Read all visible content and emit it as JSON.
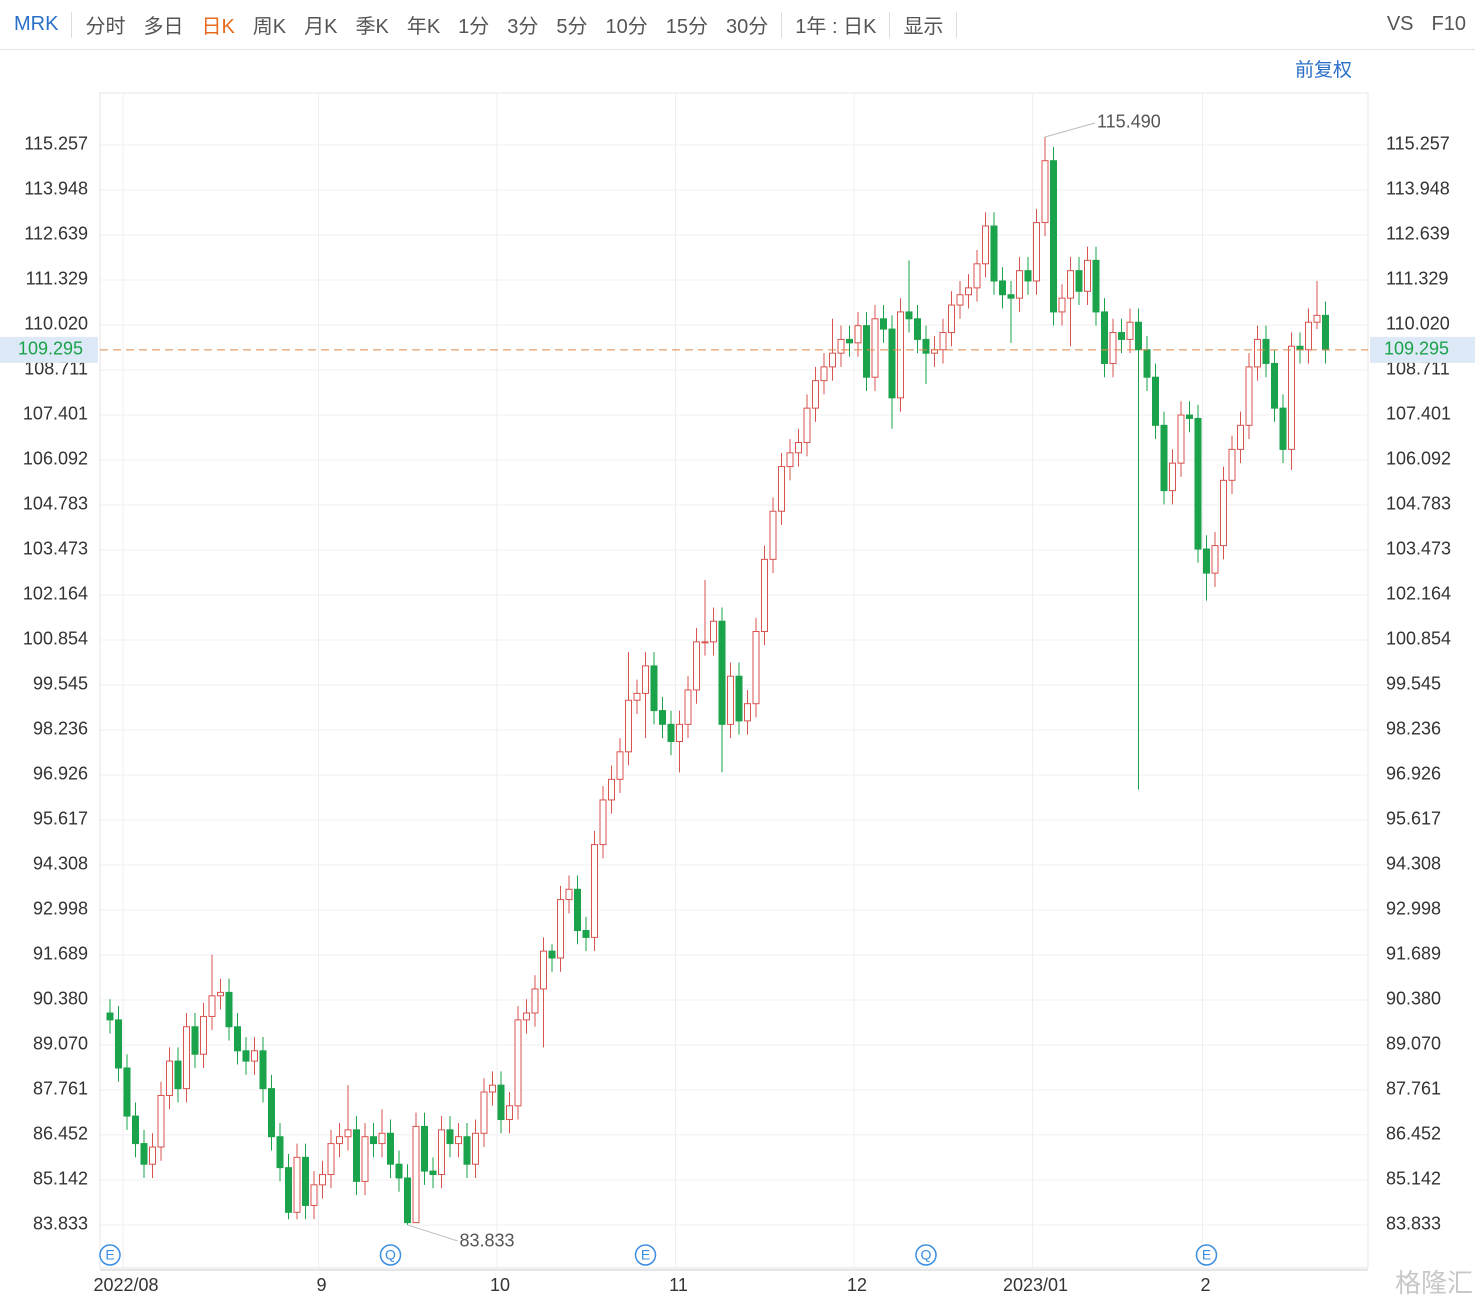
{
  "toolbar": {
    "symbol": "MRK",
    "periods": [
      "分时",
      "多日",
      "日K",
      "周K",
      "月K",
      "季K",
      "年K",
      "1分",
      "3分",
      "5分",
      "10分",
      "15分",
      "30分"
    ],
    "active": "日K",
    "range": "1年 : 日K",
    "display": "显示",
    "vs": "VS",
    "f10": "F10"
  },
  "adjust": "前复权",
  "watermark": "格隆汇",
  "chart_data": {
    "type": "candlestick",
    "up_color": "#d9534f",
    "down_color": "#1aa34a",
    "grid": true,
    "ylim": [
      82.58,
      116.77
    ],
    "yticks": [
      115.257,
      113.948,
      112.639,
      111.329,
      {
        "value": 110.02,
        "label": "110.020"
      },
      108.711,
      107.401,
      106.092,
      104.783,
      103.473,
      102.164,
      100.854,
      99.545,
      98.236,
      96.926,
      95.617,
      94.308,
      92.998,
      91.689,
      {
        "value": 90.38,
        "label": "90.380"
      },
      {
        "value": 89.07,
        "label": "89.070"
      },
      87.761,
      86.452,
      85.142,
      83.833
    ],
    "categories": [
      null,
      null,
      "2022/08",
      null,
      null,
      null,
      null,
      null,
      null,
      null,
      null,
      null,
      null,
      null,
      null,
      null,
      null,
      null,
      null,
      null,
      null,
      null,
      null,
      null,
      null,
      "9",
      null,
      null,
      null,
      null,
      null,
      null,
      null,
      null,
      null,
      null,
      null,
      null,
      null,
      null,
      null,
      null,
      null,
      null,
      null,
      null,
      "10",
      null,
      null,
      null,
      null,
      null,
      null,
      null,
      null,
      null,
      null,
      null,
      null,
      null,
      null,
      null,
      null,
      null,
      null,
      null,
      null,
      "11",
      null,
      null,
      null,
      null,
      null,
      null,
      null,
      null,
      null,
      null,
      null,
      null,
      null,
      null,
      null,
      null,
      null,
      null,
      null,
      null,
      "12",
      null,
      null,
      null,
      null,
      null,
      null,
      null,
      null,
      null,
      null,
      null,
      null,
      null,
      null,
      null,
      null,
      null,
      null,
      null,
      null,
      "2023/01",
      null,
      null,
      null,
      null,
      null,
      null,
      null,
      null,
      null,
      null,
      null,
      null,
      null,
      null,
      null,
      null,
      null,
      null,
      null,
      "2",
      null,
      null,
      null,
      null,
      null,
      null,
      null,
      null,
      null,
      null,
      null,
      null,
      null,
      null
    ],
    "open": [
      90.0,
      89.8,
      88.4,
      87.0,
      86.2,
      85.6,
      86.1,
      87.6,
      88.6,
      87.8,
      89.6,
      88.8,
      89.9,
      90.5,
      90.6,
      89.6,
      88.9,
      88.6,
      88.9,
      87.8,
      86.4,
      85.5,
      84.2,
      85.8,
      84.4,
      85.0,
      85.3,
      86.2,
      86.4,
      86.6,
      85.1,
      86.4,
      86.2,
      86.5,
      85.6,
      85.2,
      83.9,
      86.7,
      85.4,
      85.3,
      86.6,
      86.2,
      86.4,
      85.6,
      86.5,
      87.7,
      87.9,
      86.9,
      87.3,
      89.8,
      90.0,
      90.7,
      91.8,
      91.6,
      93.3,
      93.6,
      92.4,
      92.2,
      94.9,
      96.2,
      96.8,
      97.6,
      99.1,
      99.3,
      100.1,
      98.8,
      98.4,
      97.9,
      98.4,
      99.4,
      100.8,
      100.8,
      101.4,
      98.4,
      99.8,
      98.5,
      99.0,
      101.1,
      103.2,
      104.6,
      105.9,
      106.3,
      106.6,
      107.6,
      108.4,
      108.8,
      109.2,
      109.6,
      109.5,
      110.0,
      108.5,
      110.2,
      109.9,
      107.9,
      110.4,
      110.2,
      109.6,
      109.2,
      109.3,
      109.8,
      110.6,
      110.9,
      111.1,
      111.8,
      112.9,
      111.3,
      110.9,
      110.8,
      111.6,
      111.3,
      113.0,
      114.8,
      110.4,
      110.8,
      111.6,
      111.0,
      111.9,
      110.4,
      108.9,
      109.8,
      109.6,
      110.1,
      109.3,
      108.5,
      107.1,
      105.2,
      106.0,
      107.4,
      107.3,
      103.5,
      102.8,
      103.6,
      105.5,
      106.4,
      107.1,
      108.8,
      109.6,
      108.9,
      107.6,
      106.4,
      109.4,
      109.3,
      110.1,
      110.3
    ],
    "high": [
      90.4,
      90.2,
      88.8,
      87.4,
      86.6,
      86.5,
      88.0,
      89.0,
      89.0,
      90.0,
      90.0,
      90.3,
      91.7,
      91.0,
      91.0,
      90.0,
      89.3,
      89.3,
      89.3,
      88.2,
      86.8,
      85.9,
      86.2,
      86.2,
      85.4,
      85.7,
      86.6,
      86.8,
      87.9,
      87.0,
      86.8,
      86.8,
      87.2,
      86.9,
      86.0,
      85.6,
      87.1,
      87.1,
      85.8,
      87.0,
      87.0,
      86.8,
      86.8,
      86.9,
      88.1,
      88.3,
      88.3,
      87.7,
      90.2,
      90.4,
      91.1,
      92.2,
      92.0,
      93.7,
      94.0,
      94.0,
      92.8,
      95.3,
      96.6,
      97.2,
      98.0,
      100.5,
      99.7,
      100.5,
      100.5,
      99.2,
      98.8,
      98.8,
      99.8,
      101.2,
      102.6,
      101.8,
      101.8,
      100.2,
      100.2,
      99.4,
      101.5,
      103.6,
      105.0,
      106.3,
      106.7,
      107.0,
      108.0,
      108.8,
      109.2,
      110.2,
      110.0,
      110.0,
      110.4,
      110.4,
      110.6,
      110.6,
      110.3,
      110.8,
      111.9,
      110.6,
      110.0,
      109.7,
      110.2,
      111.0,
      111.3,
      111.5,
      112.2,
      113.3,
      113.3,
      111.7,
      111.3,
      112.0,
      112.0,
      113.4,
      115.49,
      115.2,
      111.2,
      112.0,
      112.0,
      112.3,
      112.3,
      110.8,
      110.2,
      110.2,
      110.5,
      110.5,
      109.7,
      108.9,
      107.5,
      106.4,
      107.8,
      107.8,
      107.7,
      103.9,
      104.0,
      105.9,
      106.8,
      107.5,
      109.2,
      110.0,
      110.0,
      109.3,
      108.0,
      109.8,
      109.8,
      110.5,
      111.3,
      110.7
    ],
    "low": [
      89.4,
      88.0,
      86.6,
      85.8,
      85.2,
      85.2,
      85.7,
      87.2,
      87.4,
      87.4,
      88.4,
      88.4,
      89.5,
      90.1,
      89.2,
      88.5,
      88.2,
      88.2,
      87.4,
      86.0,
      85.1,
      84.0,
      84.0,
      84.0,
      84.0,
      84.6,
      84.9,
      85.8,
      86.0,
      84.7,
      84.7,
      85.8,
      85.8,
      85.2,
      84.8,
      83.833,
      83.9,
      85.0,
      84.9,
      84.9,
      85.8,
      85.8,
      85.2,
      85.2,
      86.1,
      87.3,
      86.5,
      86.5,
      86.9,
      89.4,
      89.6,
      89.0,
      91.2,
      91.2,
      92.9,
      92.0,
      91.8,
      91.8,
      94.5,
      95.8,
      96.4,
      97.2,
      98.7,
      98.0,
      98.4,
      98.0,
      97.5,
      97.0,
      98.0,
      99.0,
      100.4,
      100.4,
      97.0,
      98.0,
      98.1,
      98.1,
      98.6,
      100.7,
      102.8,
      104.2,
      105.5,
      105.9,
      106.2,
      107.2,
      108.0,
      108.4,
      108.8,
      109.1,
      109.1,
      108.1,
      108.1,
      109.5,
      107.0,
      107.5,
      109.8,
      109.2,
      108.3,
      108.8,
      108.9,
      109.4,
      110.2,
      110.5,
      110.7,
      111.4,
      110.9,
      110.5,
      109.5,
      110.4,
      110.9,
      110.9,
      112.6,
      110.0,
      110.0,
      109.4,
      110.6,
      110.6,
      110.0,
      108.5,
      108.5,
      109.2,
      109.2,
      96.5,
      108.1,
      106.7,
      104.8,
      104.8,
      105.6,
      106.9,
      103.1,
      102.0,
      102.4,
      103.2,
      105.1,
      106.0,
      106.7,
      108.4,
      108.5,
      107.2,
      106.0,
      105.8,
      108.9,
      108.9,
      109.9,
      108.9
    ],
    "close": [
      89.8,
      88.4,
      87.0,
      86.2,
      85.6,
      86.1,
      87.6,
      88.6,
      87.8,
      89.6,
      88.8,
      89.9,
      90.5,
      90.6,
      89.6,
      88.9,
      88.6,
      88.9,
      87.8,
      86.4,
      85.5,
      84.2,
      85.8,
      84.4,
      85.0,
      85.3,
      86.2,
      86.4,
      86.6,
      85.1,
      86.4,
      86.2,
      86.5,
      85.6,
      85.2,
      83.9,
      86.7,
      85.4,
      85.3,
      86.6,
      86.2,
      86.4,
      85.6,
      86.5,
      87.7,
      87.9,
      86.9,
      87.3,
      89.8,
      90.0,
      90.7,
      91.8,
      91.6,
      93.3,
      93.6,
      92.4,
      92.2,
      94.9,
      96.2,
      96.8,
      97.6,
      99.1,
      99.3,
      100.1,
      98.8,
      98.4,
      97.9,
      98.4,
      99.4,
      100.8,
      100.8,
      101.4,
      98.4,
      99.8,
      98.5,
      99.0,
      101.1,
      103.2,
      104.6,
      105.9,
      106.3,
      106.6,
      107.6,
      108.4,
      108.8,
      109.2,
      109.6,
      109.5,
      110.0,
      108.5,
      110.2,
      109.9,
      107.9,
      110.4,
      110.2,
      109.6,
      109.2,
      109.3,
      109.8,
      110.6,
      110.9,
      111.1,
      111.8,
      112.9,
      111.3,
      110.9,
      110.8,
      111.6,
      111.3,
      113.0,
      114.8,
      110.4,
      110.8,
      111.6,
      111.0,
      111.9,
      110.4,
      108.9,
      109.8,
      109.6,
      110.1,
      109.3,
      108.5,
      107.1,
      105.2,
      106.0,
      107.4,
      107.3,
      103.5,
      102.8,
      103.6,
      105.5,
      106.4,
      107.1,
      108.8,
      109.6,
      108.9,
      107.6,
      106.4,
      109.4,
      109.3,
      110.1,
      110.3,
      109.295
    ],
    "max_label": {
      "value": 115.49,
      "label": "115.490"
    },
    "min_label": 83.833,
    "last_price": 109.295,
    "last_color": "#e0864a",
    "events": [
      {
        "label": "E",
        "category_index": 0
      },
      {
        "label": "Q",
        "category_index": 33
      },
      {
        "label": "E",
        "category_index": 63
      },
      {
        "label": "Q",
        "category_index": 96
      },
      {
        "label": "E",
        "category_index": 129
      }
    ]
  }
}
